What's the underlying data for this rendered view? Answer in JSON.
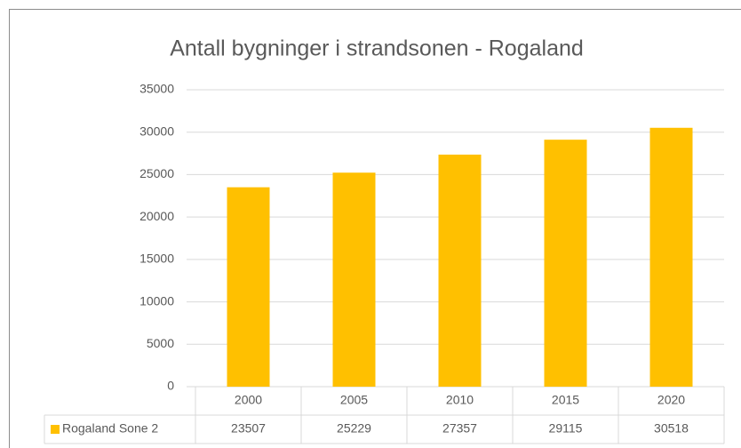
{
  "chart_data": {
    "type": "bar",
    "title": "Antall bygninger i strandsonen - Rogaland",
    "categories": [
      "2000",
      "2005",
      "2010",
      "2015",
      "2020"
    ],
    "series": [
      {
        "name": "Rogaland Sone 2",
        "color": "#ffc000",
        "values": [
          23507,
          25229,
          27357,
          29115,
          30518
        ]
      }
    ],
    "ylim": [
      0,
      35000
    ],
    "yticks": [
      0,
      5000,
      10000,
      15000,
      20000,
      25000,
      30000,
      35000
    ],
    "grid": true,
    "data_table": true
  }
}
